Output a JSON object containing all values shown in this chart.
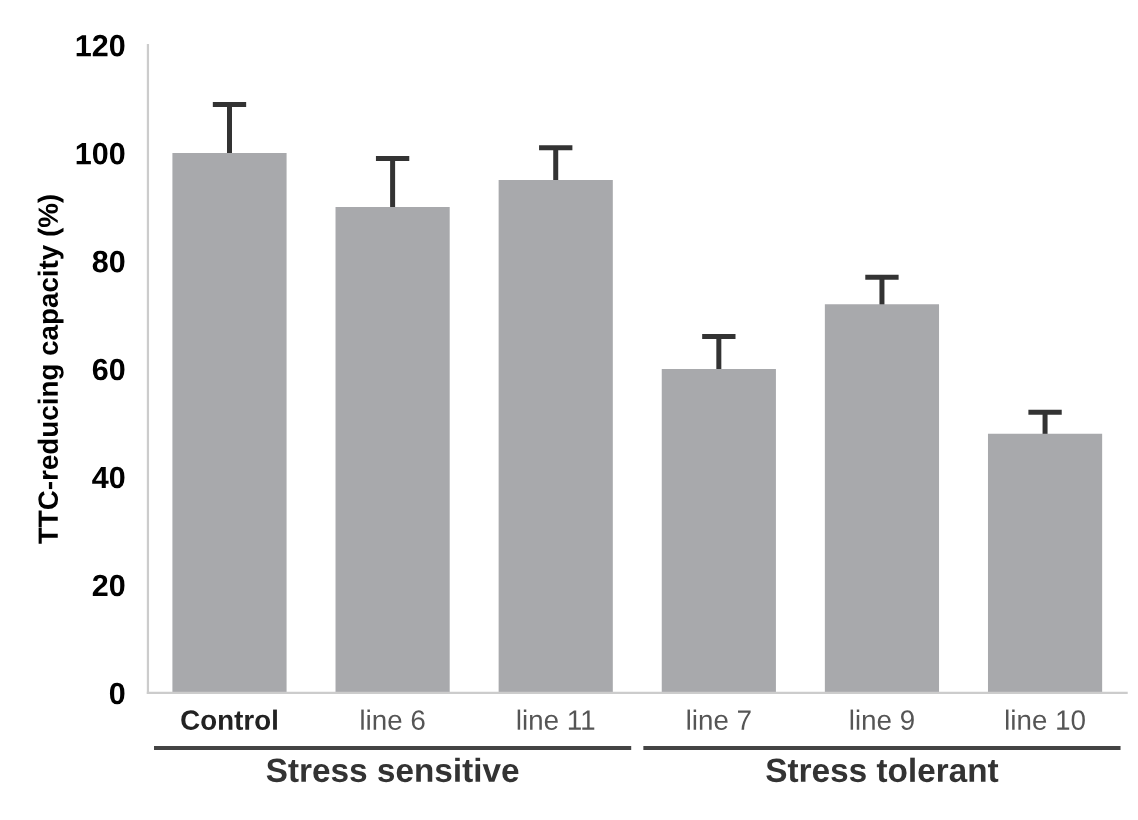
{
  "chart_data": {
    "type": "bar",
    "ylabel": "TTC-reducing capacity (%)",
    "categories": [
      "Control",
      "line 6",
      "line 11",
      "line 7",
      "line 9",
      "line 10"
    ],
    "values": [
      100,
      90,
      95,
      60,
      72,
      48
    ],
    "errors": [
      9,
      9,
      6,
      6,
      5,
      4
    ],
    "color": "#a8a9ac",
    "ylim": [
      0,
      120
    ],
    "yticks": [
      0,
      20,
      40,
      60,
      80,
      100,
      120
    ],
    "grid": false,
    "annotations": [
      "Stress sensitive",
      "Stress tolerant"
    ]
  }
}
